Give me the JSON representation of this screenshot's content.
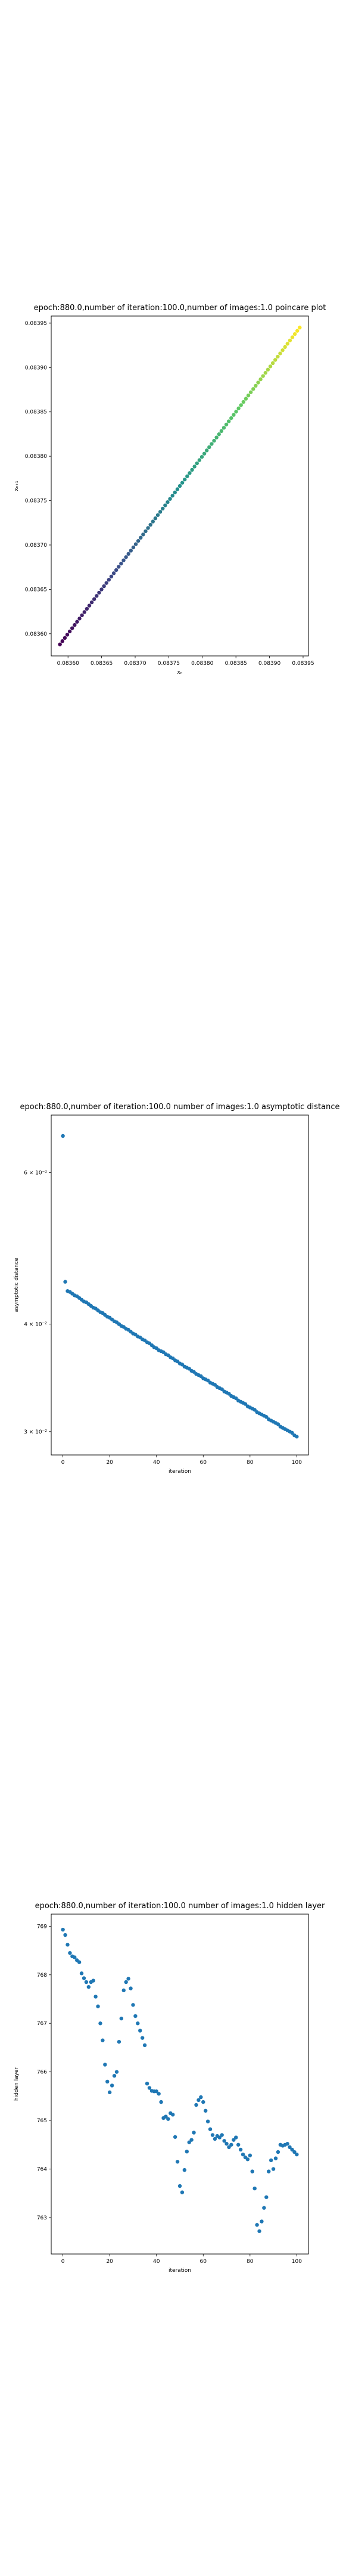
{
  "chart_data": [
    {
      "type": "scatter",
      "title": "epoch:880.0,number of iteration:100.0,number of images:1.0 poincare plot",
      "xlabel": "xₙ",
      "ylabel": "xₙ₊₁",
      "xlim": [
        0.083575,
        0.083958
      ],
      "ylim": [
        0.083575,
        0.083958
      ],
      "xticks": [
        0.0836,
        0.08365,
        0.0837,
        0.08375,
        0.0838,
        0.08385,
        0.0839,
        0.08395
      ],
      "xtick_labels": [
        "0.08360",
        "0.08365",
        "0.08370",
        "0.08375",
        "0.08380",
        "0.08385",
        "0.08390",
        "0.08395"
      ],
      "yticks": [
        0.0836,
        0.08365,
        0.0837,
        0.08375,
        0.0838,
        0.08385,
        0.0839,
        0.08395
      ],
      "ytick_labels": [
        "0.08360",
        "0.08365",
        "0.08370",
        "0.08375",
        "0.08380",
        "0.08385",
        "0.08390",
        "0.08395"
      ],
      "x_start": 0.083588,
      "x_end": 0.083945,
      "point_count": 99,
      "colormap": "viridis",
      "grid": false
    },
    {
      "type": "scatter",
      "title": "epoch:880.0,number of iteration:100.0  number of images:1.0 asymptotic distance",
      "xlabel": "iteration",
      "ylabel": "asymptotic distance",
      "y_scale": "log",
      "xlim": [
        -5,
        105
      ],
      "ylim": [
        0.02818,
        0.07
      ],
      "xticks": [
        0,
        20,
        40,
        60,
        80,
        100
      ],
      "xtick_labels": [
        "0",
        "20",
        "40",
        "60",
        "80",
        "100"
      ],
      "yticks": [
        0.03,
        0.04,
        0.06
      ],
      "ytick_labels": [
        "3 × 10⁻²",
        "4 × 10⁻²",
        "6 × 10⁻²"
      ],
      "x": [
        0,
        1,
        2,
        3,
        4,
        5,
        6,
        7,
        8,
        9,
        10,
        11,
        12,
        13,
        14,
        15,
        16,
        17,
        18,
        19,
        20,
        21,
        22,
        23,
        24,
        25,
        26,
        27,
        28,
        29,
        30,
        31,
        32,
        33,
        34,
        35,
        36,
        37,
        38,
        39,
        40,
        41,
        42,
        43,
        44,
        45,
        46,
        47,
        48,
        49,
        50,
        51,
        52,
        53,
        54,
        55,
        56,
        57,
        58,
        59,
        60,
        61,
        62,
        63,
        64,
        65,
        66,
        67,
        68,
        69,
        70,
        71,
        72,
        73,
        74,
        75,
        76,
        77,
        78,
        79,
        80,
        81,
        82,
        83,
        84,
        85,
        86,
        87,
        88,
        89,
        90,
        91,
        92,
        93,
        94,
        95,
        96,
        97,
        98,
        99,
        100
      ],
      "y": [
        0.0662,
        0.0448,
        0.0437,
        0.0436,
        0.0434,
        0.0432,
        0.0431,
        0.0429,
        0.0427,
        0.0425,
        0.0424,
        0.0422,
        0.042,
        0.0418,
        0.0417,
        0.0415,
        0.0413,
        0.0412,
        0.041,
        0.0408,
        0.0407,
        0.0405,
        0.0403,
        0.0402,
        0.04,
        0.0398,
        0.0397,
        0.0395,
        0.0394,
        0.0392,
        0.039,
        0.0389,
        0.0387,
        0.0386,
        0.0384,
        0.0383,
        0.0381,
        0.038,
        0.0378,
        0.0376,
        0.0375,
        0.0373,
        0.0372,
        0.0371,
        0.0369,
        0.0368,
        0.0366,
        0.0365,
        0.0363,
        0.0362,
        0.036,
        0.0359,
        0.0357,
        0.0356,
        0.0355,
        0.0353,
        0.0352,
        0.035,
        0.0349,
        0.0348,
        0.0346,
        0.0345,
        0.0344,
        0.0342,
        0.0341,
        0.034,
        0.0338,
        0.0337,
        0.0336,
        0.0334,
        0.0333,
        0.0332,
        0.033,
        0.0329,
        0.0328,
        0.0326,
        0.0325,
        0.0324,
        0.0323,
        0.0321,
        0.032,
        0.0319,
        0.0318,
        0.0316,
        0.0315,
        0.0314,
        0.0313,
        0.0312,
        0.031,
        0.0309,
        0.0308,
        0.0307,
        0.0306,
        0.0304,
        0.0303,
        0.0302,
        0.0301,
        0.03,
        0.0299,
        0.0297,
        0.0296
      ],
      "color": "#1f77b4",
      "grid": false
    },
    {
      "type": "scatter",
      "title": "epoch:880.0,number of iteration:100.0  number of images:1.0 hidden layer",
      "xlabel": "iteration",
      "ylabel": "hidden layer",
      "xlim": [
        -5,
        105
      ],
      "ylim": [
        762.25,
        769.25
      ],
      "xticks": [
        0,
        20,
        40,
        60,
        80,
        100
      ],
      "xtick_labels": [
        "0",
        "20",
        "40",
        "60",
        "80",
        "100"
      ],
      "yticks": [
        763,
        764,
        765,
        766,
        767,
        768,
        769
      ],
      "ytick_labels": [
        "763",
        "764",
        "765",
        "766",
        "767",
        "768",
        "769"
      ],
      "x": [
        0,
        1,
        2,
        3,
        4,
        5,
        6,
        7,
        8,
        9,
        10,
        11,
        12,
        13,
        14,
        15,
        16,
        17,
        18,
        19,
        20,
        21,
        22,
        23,
        24,
        25,
        26,
        27,
        28,
        29,
        30,
        31,
        32,
        33,
        34,
        35,
        36,
        37,
        38,
        39,
        40,
        41,
        42,
        43,
        44,
        45,
        46,
        47,
        48,
        49,
        50,
        51,
        52,
        53,
        54,
        55,
        56,
        57,
        58,
        59,
        60,
        61,
        62,
        63,
        64,
        65,
        66,
        67,
        68,
        69,
        70,
        71,
        72,
        73,
        74,
        75,
        76,
        77,
        78,
        79,
        80,
        81,
        82,
        83,
        84,
        85,
        86,
        87,
        88,
        89,
        90,
        91,
        92,
        93,
        94,
        95,
        96,
        97,
        98,
        99,
        100
      ],
      "y": [
        768.93,
        768.82,
        768.62,
        768.45,
        768.38,
        768.36,
        768.3,
        768.26,
        768.03,
        767.93,
        767.85,
        767.75,
        767.85,
        767.88,
        767.55,
        767.35,
        767.0,
        766.65,
        766.15,
        765.8,
        765.58,
        765.72,
        765.92,
        766.0,
        766.62,
        767.1,
        767.68,
        767.85,
        767.92,
        767.72,
        767.38,
        767.15,
        767.0,
        766.85,
        766.7,
        766.55,
        765.76,
        765.67,
        765.61,
        765.6,
        765.6,
        765.55,
        765.38,
        765.05,
        765.08,
        765.03,
        765.15,
        765.12,
        764.66,
        764.15,
        763.65,
        763.52,
        763.98,
        764.36,
        764.55,
        764.6,
        764.75,
        765.32,
        765.42,
        765.48,
        765.38,
        765.2,
        764.98,
        764.82,
        764.7,
        764.62,
        764.68,
        764.65,
        764.7,
        764.58,
        764.52,
        764.45,
        764.5,
        764.6,
        764.65,
        764.5,
        764.4,
        764.3,
        764.24,
        764.2,
        764.28,
        763.95,
        763.6,
        762.85,
        762.72,
        762.92,
        763.2,
        763.42,
        763.95,
        764.18,
        764.0,
        764.22,
        764.35,
        764.5,
        764.48,
        764.5,
        764.52,
        764.45,
        764.4,
        764.35,
        764.3
      ],
      "color": "#1f77b4",
      "grid": false
    }
  ]
}
